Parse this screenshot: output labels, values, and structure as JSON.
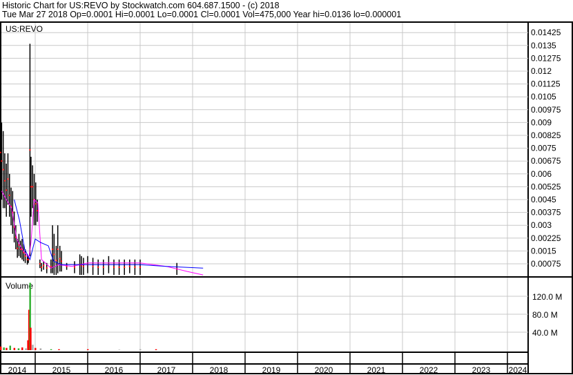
{
  "header": {
    "title": "Historic Chart for US:REVO by Stockwatch.com 604.687.1500 - (c) 2018",
    "quote": "Tue Mar 27 2018   Op=0.0001   Hi=0.0001   Lo=0.0001   Cl=0.0001   Vol=475,000   Year hi=0.0136   lo=0.000001"
  },
  "chart_data": [
    {
      "type": "bar",
      "title": "US:REVO",
      "subtype": "high-low price bars with moving averages",
      "y_ticks": [
        "0.01425",
        "0.0135",
        "0.01275",
        "0.012",
        "0.01125",
        "0.0105",
        "0.00975",
        "0.009",
        "0.00825",
        "0.0075",
        "0.00675",
        "0.006",
        "0.00525",
        "0.0045",
        "0.00375",
        "0.003",
        "0.00225",
        "0.0015",
        "0.00075"
      ],
      "ylim": [
        0,
        0.015
      ],
      "grid": true,
      "axis_side": "right",
      "x_ticks": [
        "2014",
        "2015",
        "2016",
        "2017",
        "2018",
        "2019",
        "2020",
        "2021",
        "2022",
        "2023",
        "2024"
      ],
      "xlim": [
        2014.33,
        2024.4
      ],
      "colors": {
        "bars": "#000000",
        "close_marks": "#ff0000",
        "ma_short": "#ff00ff",
        "ma_long": "#0000ff"
      },
      "bars": [
        [
          2014.34,
          0.0095,
          0.005
        ],
        [
          2014.36,
          0.009,
          0.0045
        ],
        [
          2014.39,
          0.0085,
          0.004
        ],
        [
          2014.42,
          0.0072,
          0.004
        ],
        [
          2014.45,
          0.0066,
          0.0035
        ],
        [
          2014.48,
          0.0072,
          0.0042
        ],
        [
          2014.51,
          0.006,
          0.0035
        ],
        [
          2014.54,
          0.0052,
          0.003
        ],
        [
          2014.57,
          0.005,
          0.0025
        ],
        [
          2014.6,
          0.0038,
          0.002
        ],
        [
          2014.63,
          0.003,
          0.0016
        ],
        [
          2014.66,
          0.0022,
          0.0011
        ],
        [
          2014.69,
          0.0025,
          0.0012
        ],
        [
          2014.72,
          0.0021,
          0.0011
        ],
        [
          2014.75,
          0.0022,
          0.001
        ],
        [
          2014.78,
          0.0019,
          0.0009
        ],
        [
          2014.81,
          0.0016,
          0.0008
        ],
        [
          2014.85,
          0.0013,
          0.0007
        ],
        [
          2014.87,
          0.0012,
          0.0008
        ],
        [
          2014.9,
          0.0136,
          0.0012
        ],
        [
          2014.92,
          0.007,
          0.0035
        ],
        [
          2014.95,
          0.0065,
          0.004
        ],
        [
          2014.98,
          0.006,
          0.003
        ],
        [
          2015.01,
          0.0055,
          0.003
        ],
        [
          2015.04,
          0.0045,
          0.0032
        ],
        [
          2015.09,
          0.001,
          0.0005
        ],
        [
          2015.12,
          0.0008,
          0.0003
        ],
        [
          2015.16,
          0.0009,
          0.0004
        ],
        [
          2015.22,
          0.0008,
          0.0002
        ],
        [
          2015.3,
          0.001,
          0.0002
        ],
        [
          2015.33,
          0.003,
          0.0002
        ],
        [
          2015.36,
          0.0025,
          0.0001
        ],
        [
          2015.4,
          0.0018,
          0.0001
        ],
        [
          2015.43,
          0.003,
          0.0002
        ],
        [
          2015.47,
          0.0018,
          0.0003
        ],
        [
          2015.5,
          0.0015,
          0.0003
        ],
        [
          2015.6,
          0.0008,
          0.0004
        ],
        [
          2015.75,
          0.0009,
          0.0002
        ],
        [
          2015.85,
          0.0013,
          0.0001
        ],
        [
          2015.88,
          0.0012,
          0.0001
        ],
        [
          2015.92,
          0.0011,
          0.0001
        ],
        [
          2016.0,
          0.0012,
          0.0002
        ],
        [
          2016.1,
          0.0011,
          0.0001
        ],
        [
          2016.2,
          0.001,
          0.0001
        ],
        [
          2016.3,
          0.001,
          0.0001
        ],
        [
          2016.4,
          0.0012,
          0.0002
        ],
        [
          2016.5,
          0.001,
          0.0001
        ],
        [
          2016.6,
          0.001,
          0.0001
        ],
        [
          2016.7,
          0.001,
          0.0001
        ],
        [
          2016.8,
          0.001,
          0.0002
        ],
        [
          2016.9,
          0.001,
          0.0001
        ],
        [
          2017.0,
          0.001,
          0.0001
        ],
        [
          2017.7,
          0.0008,
          0.0001
        ]
      ],
      "ma_short": [
        [
          2014.36,
          0.005
        ],
        [
          2014.45,
          0.0045
        ],
        [
          2014.55,
          0.004
        ],
        [
          2014.65,
          0.0022
        ],
        [
          2014.75,
          0.0016
        ],
        [
          2014.88,
          0.0011
        ],
        [
          2014.92,
          0.002
        ],
        [
          2014.98,
          0.0045
        ],
        [
          2015.05,
          0.0043
        ],
        [
          2015.12,
          0.001
        ],
        [
          2015.3,
          0.0005
        ],
        [
          2015.45,
          0.0007
        ],
        [
          2015.7,
          0.0006
        ],
        [
          2016.0,
          0.0008
        ],
        [
          2016.5,
          0.0008
        ],
        [
          2017.0,
          0.0008
        ],
        [
          2017.5,
          0.0006
        ],
        [
          2017.9,
          0.0003
        ],
        [
          2018.2,
          0.0001
        ]
      ],
      "ma_long": [
        [
          2014.6,
          0.0045
        ],
        [
          2014.7,
          0.0033
        ],
        [
          2014.8,
          0.0016
        ],
        [
          2014.9,
          0.001
        ],
        [
          2015.0,
          0.0022
        ],
        [
          2015.1,
          0.002
        ],
        [
          2015.25,
          0.0018
        ],
        [
          2015.35,
          0.0009
        ],
        [
          2015.5,
          0.0007
        ],
        [
          2016.0,
          0.0007
        ],
        [
          2017.0,
          0.0007
        ],
        [
          2017.5,
          0.0006
        ],
        [
          2018.2,
          0.0005
        ]
      ]
    },
    {
      "type": "bar",
      "title": "Volume",
      "y_ticks": [
        "120.0 M",
        "80.0 M",
        "40.0 M"
      ],
      "ylim": [
        0,
        150
      ],
      "colors": {
        "up": "#33b033",
        "down": "#ff0000",
        "flat": "#aaaaaa"
      },
      "values": [
        [
          2014.34,
          8,
          "down"
        ],
        [
          2014.4,
          6,
          "up"
        ],
        [
          2014.45,
          5,
          "down"
        ],
        [
          2014.52,
          10,
          "up"
        ],
        [
          2014.6,
          5,
          "down"
        ],
        [
          2014.68,
          4,
          "up"
        ],
        [
          2014.75,
          6,
          "down"
        ],
        [
          2014.82,
          4,
          "flat"
        ],
        [
          2014.86,
          22,
          "down"
        ],
        [
          2014.88,
          90,
          "down"
        ],
        [
          2014.9,
          150,
          "up"
        ],
        [
          2014.91,
          50,
          "down"
        ],
        [
          2014.95,
          12,
          "flat"
        ],
        [
          2015.0,
          5,
          "down"
        ],
        [
          2015.1,
          4,
          "flat"
        ],
        [
          2015.3,
          2,
          "up"
        ],
        [
          2015.45,
          2,
          "down"
        ],
        [
          2016.0,
          2,
          "down"
        ],
        [
          2016.6,
          1,
          "flat"
        ],
        [
          2017.0,
          2,
          "flat"
        ],
        [
          2017.3,
          2,
          "down"
        ]
      ]
    }
  ]
}
